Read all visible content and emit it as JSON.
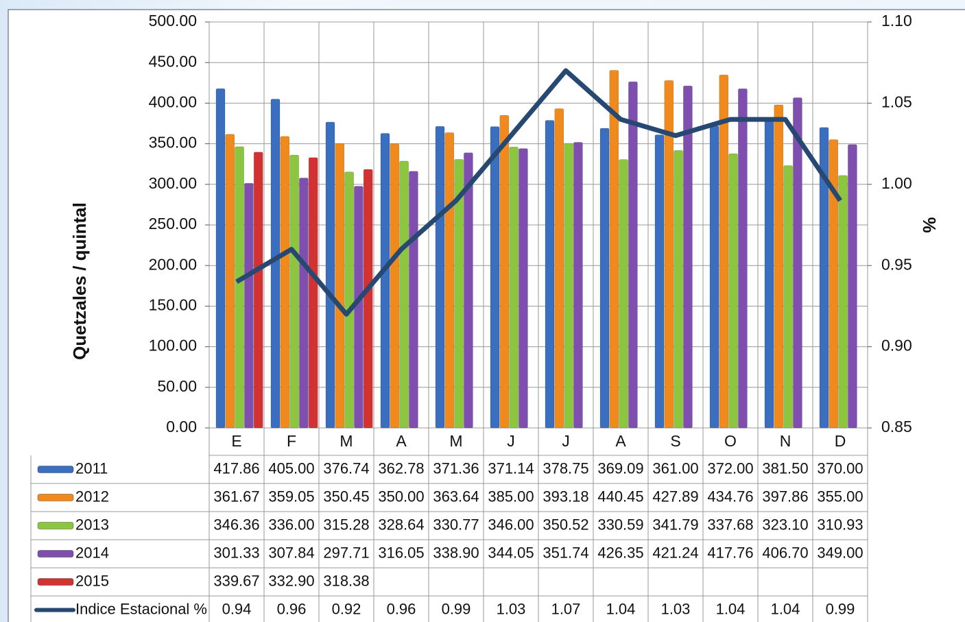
{
  "chart_data": {
    "type": "bar",
    "y_label": "Quetzales / quintal",
    "y2_label": "%",
    "categories": [
      "E",
      "F",
      "M",
      "A",
      "M",
      "J",
      "J",
      "A",
      "S",
      "O",
      "N",
      "D"
    ],
    "series": [
      {
        "name": "2011",
        "color": "#3a6fc0",
        "values": [
          417.86,
          405,
          376.74,
          362.78,
          371.36,
          371.14,
          378.75,
          369.09,
          361,
          372,
          381.5,
          370
        ],
        "value_labels": [
          "417.86",
          "405.00",
          "376.74",
          "362.78",
          "371.36",
          "371.14",
          "378.75",
          "369.09",
          "361.00",
          "372.00",
          "381.50",
          "370.00"
        ]
      },
      {
        "name": "2012",
        "color": "#f08a1d",
        "values": [
          361.67,
          359.05,
          350.45,
          350,
          363.64,
          385,
          393.18,
          440.45,
          427.89,
          434.76,
          397.86,
          355
        ],
        "value_labels": [
          "361.67",
          "359.05",
          "350.45",
          "350.00",
          "363.64",
          "385.00",
          "393.18",
          "440.45",
          "427.89",
          "434.76",
          "397.86",
          "355.00"
        ]
      },
      {
        "name": "2013",
        "color": "#8cc63e",
        "values": [
          346.36,
          336,
          315.28,
          328.64,
          330.77,
          346,
          350.52,
          330.59,
          341.79,
          337.68,
          323.1,
          310.93
        ],
        "value_labels": [
          "346.36",
          "336.00",
          "315.28",
          "328.64",
          "330.77",
          "346.00",
          "350.52",
          "330.59",
          "341.79",
          "337.68",
          "323.10",
          "310.93"
        ]
      },
      {
        "name": "2014",
        "color": "#7f4fb0",
        "values": [
          301.33,
          307.84,
          297.71,
          316.05,
          338.9,
          344.05,
          351.74,
          426.35,
          421.24,
          417.76,
          406.7,
          349
        ],
        "value_labels": [
          "301.33",
          "307.84",
          "297.71",
          "316.05",
          "338.90",
          "344.05",
          "351.74",
          "426.35",
          "421.24",
          "417.76",
          "406.70",
          "349.00"
        ]
      },
      {
        "name": "2015",
        "color": "#d23232",
        "values": [
          339.67,
          332.9,
          318.38,
          null,
          null,
          null,
          null,
          null,
          null,
          null,
          null,
          null
        ],
        "value_labels": [
          "339.67",
          "332.90",
          "318.38",
          null,
          null,
          null,
          null,
          null,
          null,
          null,
          null,
          null
        ]
      },
      {
        "name": "Indice Estacional %",
        "type": "line",
        "axis": "y2",
        "color": "#274870",
        "values": [
          0.94,
          0.96,
          0.92,
          0.96,
          0.99,
          1.03,
          1.07,
          1.04,
          1.03,
          1.04,
          1.04,
          0.99
        ]
      }
    ],
    "ylim": [
      0,
      500
    ],
    "yticks": [
      {
        "value": 0,
        "label": "0.00"
      },
      {
        "value": 50,
        "label": "50.00"
      },
      {
        "value": 100,
        "label": "100.00"
      },
      {
        "value": 150,
        "label": "150.00"
      },
      {
        "value": 200,
        "label": "200.00"
      },
      {
        "value": 250,
        "label": "250.00"
      },
      {
        "value": 300,
        "label": "300.00"
      },
      {
        "value": 350,
        "label": "350.00"
      },
      {
        "value": 400,
        "label": "400.00"
      },
      {
        "value": 450,
        "label": "450.00"
      },
      {
        "value": 500,
        "label": "500.00"
      }
    ],
    "y2lim": [
      0.85,
      1.1
    ],
    "y2ticks": [
      0.85,
      {
        "value": 0.9,
        "label": "0.90"
      },
      0.95,
      {
        "value": 1,
        "label": "1.00"
      },
      1.05,
      {
        "value": 1.1,
        "label": "1.10"
      }
    ],
    "grid": true
  }
}
